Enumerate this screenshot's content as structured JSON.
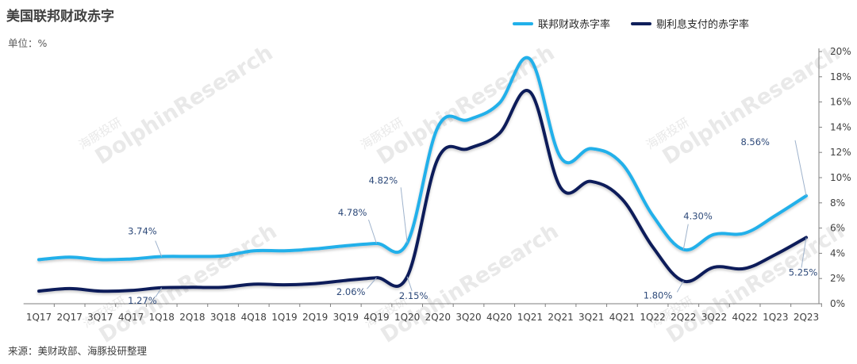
{
  "title": "美国联邦财政赤字",
  "unit": "单位：%",
  "source": "来源：美财政部、海豚投研整理",
  "watermark": {
    "cn": "海豚投研",
    "en": "DolphinResearch"
  },
  "colors": {
    "series1": "#21b0ea",
    "series2": "#0f1f5a",
    "axis": "#7f7f7f",
    "annotation": "#2e4a7a",
    "leader": "#9fb3cc"
  },
  "chart_data": {
    "type": "line",
    "title": "美国联邦财政赤字",
    "ylabel": "单位：%",
    "y_axis_side": "right",
    "ylim": [
      0,
      20
    ],
    "y_ticks": [
      "0%",
      "2%",
      "4%",
      "6%",
      "8%",
      "10%",
      "12%",
      "14%",
      "16%",
      "18%",
      "20%"
    ],
    "grid": false,
    "legend_position": "top-right",
    "categories": [
      "1Q17",
      "2Q17",
      "3Q17",
      "4Q17",
      "1Q18",
      "2Q18",
      "3Q18",
      "4Q18",
      "1Q19",
      "2Q19",
      "3Q19",
      "4Q19",
      "1Q20",
      "2Q20",
      "3Q20",
      "4Q20",
      "1Q21",
      "2Q21",
      "3Q21",
      "4Q21",
      "1Q22",
      "2Q22",
      "3Q22",
      "4Q22",
      "1Q23",
      "2Q23"
    ],
    "series": [
      {
        "name": "联邦财政赤字率",
        "color": "#21b0ea",
        "values": [
          3.5,
          3.7,
          3.5,
          3.55,
          3.74,
          3.75,
          3.8,
          4.2,
          4.2,
          4.35,
          4.6,
          4.78,
          4.82,
          14.0,
          14.6,
          15.9,
          19.4,
          11.6,
          12.3,
          11.1,
          7.0,
          4.3,
          5.5,
          5.6,
          7.0,
          8.56
        ]
      },
      {
        "name": "剔利息支付的赤字率",
        "color": "#0f1f5a",
        "values": [
          1.0,
          1.2,
          1.0,
          1.05,
          1.27,
          1.3,
          1.3,
          1.55,
          1.5,
          1.6,
          1.85,
          2.06,
          2.15,
          11.5,
          12.3,
          13.5,
          16.8,
          9.2,
          9.7,
          8.3,
          4.5,
          1.8,
          2.9,
          2.8,
          3.9,
          5.25
        ]
      }
    ],
    "annotations": [
      {
        "series": 0,
        "index": 4,
        "text": "3.74%"
      },
      {
        "series": 1,
        "index": 4,
        "text": "1.27%"
      },
      {
        "series": 0,
        "index": 11,
        "text": "4.78%"
      },
      {
        "series": 1,
        "index": 11,
        "text": "2.06%"
      },
      {
        "series": 0,
        "index": 12,
        "text": "4.82%"
      },
      {
        "series": 1,
        "index": 12,
        "text": "2.15%"
      },
      {
        "series": 0,
        "index": 21,
        "text": "4.30%"
      },
      {
        "series": 1,
        "index": 21,
        "text": "1.80%"
      },
      {
        "series": 0,
        "index": 25,
        "text": "8.56%"
      },
      {
        "series": 1,
        "index": 25,
        "text": "5.25%"
      }
    ]
  }
}
